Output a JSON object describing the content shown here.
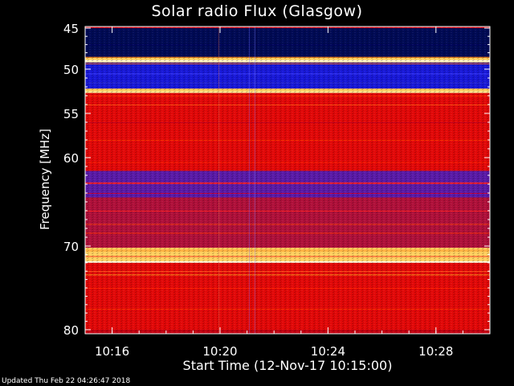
{
  "chart_data": {
    "type": "heatmap",
    "title": "Solar radio Flux (Glasgow)",
    "xlabel": "Start Time (12-Nov-17 10:15:00)",
    "ylabel": "Frequency [MHz]",
    "x_start": "10:15:00",
    "x_end": "10:30:00",
    "x_ticks": [
      "10:16",
      "10:20",
      "10:24",
      "10:28"
    ],
    "y_range": [
      45,
      80
    ],
    "y_ticks": [
      45,
      50,
      55,
      60,
      70,
      80
    ],
    "y_scale": "nonlinear",
    "colormap": [
      "#000050",
      "#0000c8",
      "#3030ff",
      "#a00030",
      "#e00000",
      "#ff4000",
      "#ffa000",
      "#ffff80"
    ],
    "frequency_bands": [
      {
        "from": 45.0,
        "to": 48.6,
        "level": "low"
      },
      {
        "from": 48.6,
        "to": 49.2,
        "level": "very-high"
      },
      {
        "from": 49.2,
        "to": 52.2,
        "level": "mid-low"
      },
      {
        "from": 52.2,
        "to": 52.7,
        "level": "very-high"
      },
      {
        "from": 52.7,
        "to": 61.5,
        "level": "high"
      },
      {
        "from": 61.5,
        "to": 64.5,
        "level": "mid"
      },
      {
        "from": 64.5,
        "to": 70.2,
        "level": "mid-high"
      },
      {
        "from": 70.2,
        "to": 72.0,
        "level": "very-high"
      },
      {
        "from": 72.0,
        "to": 80.0,
        "level": "high"
      }
    ]
  },
  "footer": "Updated Thu Feb 22 04:26:47 2018"
}
